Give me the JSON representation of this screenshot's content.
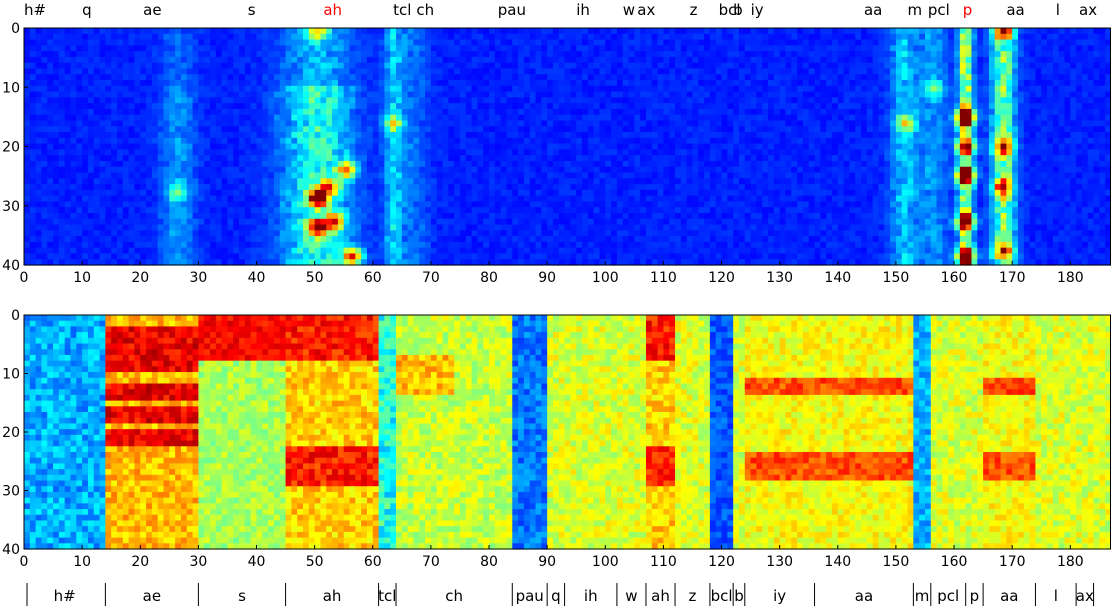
{
  "colors": {
    "highlight": "#ff0000",
    "text": "#000000",
    "colormap": "jet"
  },
  "chart_data": [
    {
      "type": "heatmap",
      "title": "",
      "xlabel": "",
      "ylabel": "",
      "xlim": [
        0,
        187
      ],
      "ylim": [
        40,
        0
      ],
      "x_ticks": [
        "0",
        "10",
        "20",
        "30",
        "40",
        "50",
        "60",
        "70",
        "80",
        "90",
        "100",
        "110",
        "120",
        "130",
        "140",
        "150",
        "160",
        "170",
        "180"
      ],
      "y_ticks": [
        "0",
        "10",
        "20",
        "30",
        "40"
      ],
      "top_labels": [
        {
          "text": "h#",
          "x": 0,
          "highlight": false
        },
        {
          "text": "q",
          "x": 10,
          "highlight": false
        },
        {
          "text": "ae",
          "x": 20.5,
          "highlight": false
        },
        {
          "text": "s",
          "x": 38.5,
          "highlight": false
        },
        {
          "text": "ah",
          "x": 51.5,
          "highlight": true
        },
        {
          "text": "tcl",
          "x": 63.5,
          "highlight": false
        },
        {
          "text": "ch",
          "x": 67.5,
          "highlight": false
        },
        {
          "text": "pau",
          "x": 81.5,
          "highlight": false
        },
        {
          "text": "ih",
          "x": 95,
          "highlight": false
        },
        {
          "text": "w",
          "x": 103,
          "highlight": false
        },
        {
          "text": "ax",
          "x": 105.5,
          "highlight": false
        },
        {
          "text": "z",
          "x": 114.5,
          "highlight": false
        },
        {
          "text": "bcl",
          "x": 119.5,
          "highlight": false
        },
        {
          "text": "b",
          "x": 122,
          "highlight": false
        },
        {
          "text": "iy",
          "x": 125,
          "highlight": false
        },
        {
          "text": "aa",
          "x": 144.5,
          "highlight": false
        },
        {
          "text": "m",
          "x": 152,
          "highlight": false
        },
        {
          "text": "pcl",
          "x": 155.5,
          "highlight": false
        },
        {
          "text": "p",
          "x": 161.5,
          "highlight": true
        },
        {
          "text": "aa",
          "x": 169,
          "highlight": false
        },
        {
          "text": "l",
          "x": 177.5,
          "highlight": false
        },
        {
          "text": "ax",
          "x": 181.5,
          "highlight": false
        }
      ],
      "hotspots": [
        {
          "x": 50,
          "y": 29,
          "v": 0.95
        },
        {
          "x": 50,
          "y": 34,
          "v": 0.85
        },
        {
          "x": 55,
          "y": 24,
          "v": 0.6
        },
        {
          "x": 52,
          "y": 27,
          "v": 0.55
        },
        {
          "x": 56,
          "y": 39,
          "v": 0.7
        },
        {
          "x": 53,
          "y": 33,
          "v": 0.6
        },
        {
          "x": 161.5,
          "y": 15,
          "v": 1.0
        },
        {
          "x": 161.5,
          "y": 25,
          "v": 0.9
        },
        {
          "x": 161.5,
          "y": 20,
          "v": 0.7
        },
        {
          "x": 161.5,
          "y": 33,
          "v": 0.75
        },
        {
          "x": 161.5,
          "y": 39,
          "v": 0.85
        },
        {
          "x": 168,
          "y": 0,
          "v": 0.55
        },
        {
          "x": 168,
          "y": 20,
          "v": 0.6
        },
        {
          "x": 168,
          "y": 27,
          "v": 0.55
        },
        {
          "x": 168,
          "y": 38,
          "v": 0.5
        },
        {
          "x": 151,
          "y": 16,
          "v": 0.4
        },
        {
          "x": 156,
          "y": 10,
          "v": 0.3
        },
        {
          "x": 63,
          "y": 16,
          "v": 0.35
        },
        {
          "x": 50,
          "y": 0,
          "v": 0.45
        },
        {
          "x": 26,
          "y": 28,
          "v": 0.3
        }
      ]
    },
    {
      "type": "heatmap",
      "title": "",
      "xlabel": "",
      "ylabel": "",
      "xlim": [
        0,
        187
      ],
      "ylim": [
        40,
        0
      ],
      "x_ticks": [
        "0",
        "10",
        "20",
        "30",
        "40",
        "50",
        "60",
        "70",
        "80",
        "90",
        "100",
        "110",
        "120",
        "130",
        "140",
        "150",
        "160",
        "170",
        "180"
      ],
      "y_ticks": [
        "0",
        "10",
        "20",
        "30",
        "40"
      ],
      "segments": [
        {
          "label": "h#",
          "start": 0,
          "end": 14
        },
        {
          "label": "ae",
          "start": 14,
          "end": 30
        },
        {
          "label": "s",
          "start": 30,
          "end": 45
        },
        {
          "label": "ah",
          "start": 45,
          "end": 61
        },
        {
          "label": "tcl",
          "start": 61,
          "end": 64
        },
        {
          "label": "ch",
          "start": 64,
          "end": 84
        },
        {
          "label": "pau",
          "start": 84,
          "end": 90
        },
        {
          "label": "q",
          "start": 90,
          "end": 93
        },
        {
          "label": "ih",
          "start": 93,
          "end": 102
        },
        {
          "label": "w",
          "start": 102,
          "end": 107
        },
        {
          "label": "ah",
          "start": 107,
          "end": 112
        },
        {
          "label": "z",
          "start": 112,
          "end": 118
        },
        {
          "label": "bcl",
          "start": 118,
          "end": 122
        },
        {
          "label": "b",
          "start": 122,
          "end": 124
        },
        {
          "label": "iy",
          "start": 124,
          "end": 136
        },
        {
          "label": "aa",
          "start": 136,
          "end": 153
        },
        {
          "label": "m",
          "start": 153,
          "end": 156
        },
        {
          "label": "pcl",
          "start": 156,
          "end": 162
        },
        {
          "label": "p",
          "start": 162,
          "end": 165
        },
        {
          "label": "aa",
          "start": 165,
          "end": 174
        },
        {
          "label": "l",
          "start": 174,
          "end": 181
        },
        {
          "label": "ax",
          "start": 181,
          "end": 184
        }
      ]
    }
  ]
}
